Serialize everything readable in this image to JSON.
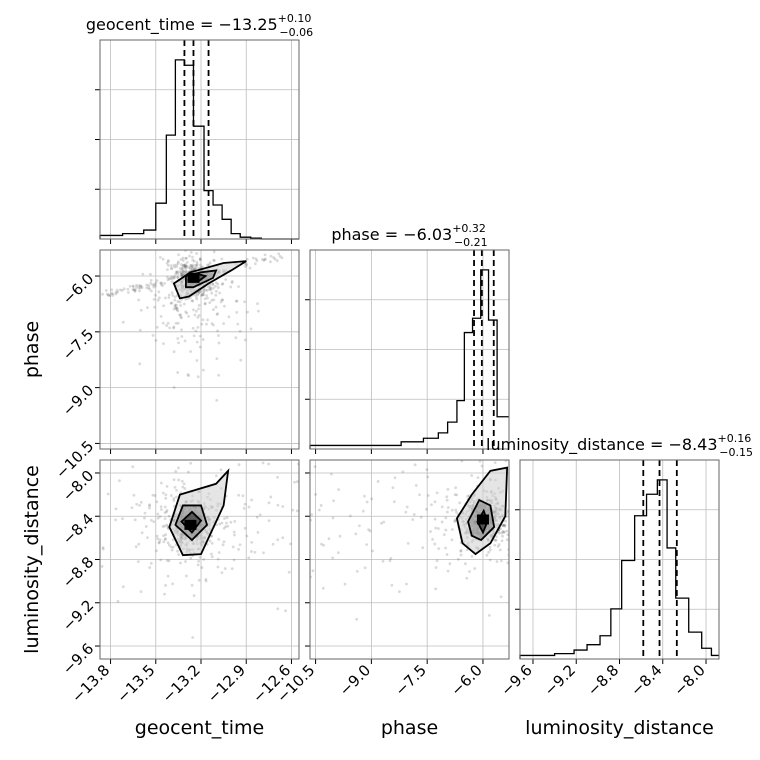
{
  "chart_data": {
    "type": "corner",
    "parameters": [
      {
        "key": "geocent_time",
        "axis_label": "geocent_time",
        "title": "geocent_time",
        "median": "−13.25",
        "plus": "+0.10",
        "minus": "−0.06",
        "range": [
          -13.87,
          -12.55
        ],
        "ticks": [
          -13.8,
          -13.5,
          -13.2,
          -12.9,
          -12.6
        ],
        "tick_labels": [
          "−13.8",
          "−13.5",
          "−13.2",
          "−12.9",
          "−12.6"
        ],
        "quantiles": [
          -13.31,
          -13.25,
          -13.15
        ],
        "hist_edges": [
          -13.87,
          -13.72,
          -13.58,
          -13.5,
          -13.43,
          -13.37,
          -13.31,
          -13.25,
          -13.18,
          -13.12,
          -13.06,
          -13.0,
          -12.94,
          -12.87,
          -12.8,
          -12.55
        ],
        "hist_values": [
          0.02,
          0.03,
          0.05,
          0.2,
          0.58,
          1.0,
          0.97,
          0.63,
          0.27,
          0.19,
          0.11,
          0.03,
          0.01,
          0.005,
          0.0
        ]
      },
      {
        "key": "phase",
        "axis_label": "phase",
        "title": "phase",
        "median": "−6.03",
        "plus": "+0.32",
        "minus": "−0.21",
        "range": [
          -10.65,
          -5.3
        ],
        "ticks": [
          -10.5,
          -9.0,
          -7.5,
          -6.0
        ],
        "tick_labels": [
          "−10.5",
          "−9.0",
          "−7.5",
          "−6.0"
        ],
        "quantiles": [
          -6.24,
          -6.03,
          -5.71
        ],
        "hist_edges": [
          -10.65,
          -8.2,
          -7.6,
          -7.2,
          -6.95,
          -6.7,
          -6.5,
          -6.28,
          -6.06,
          -5.85,
          -5.62,
          -5.3
        ],
        "hist_values": [
          0.02,
          0.04,
          0.06,
          0.09,
          0.15,
          0.27,
          0.65,
          0.73,
          1.0,
          0.72,
          0.18
        ]
      },
      {
        "key": "luminosity_distance",
        "axis_label": "luminosity_distance",
        "title": "luminosity_distance",
        "median": "−8.43",
        "plus": "+0.16",
        "minus": "−0.15",
        "range": [
          -9.72,
          -7.88
        ],
        "ticks": [
          -9.6,
          -9.2,
          -8.8,
          -8.4,
          -8.0
        ],
        "tick_labels": [
          "−9.6",
          "−9.2",
          "−8.8",
          "−8.4",
          "−8.0"
        ],
        "quantiles": [
          -8.58,
          -8.43,
          -8.27
        ],
        "hist_edges": [
          -9.72,
          -9.4,
          -9.22,
          -9.1,
          -8.98,
          -8.88,
          -8.78,
          -8.66,
          -8.55,
          -8.45,
          -8.36,
          -8.28,
          -8.16,
          -8.04,
          -7.95,
          -7.88
        ],
        "hist_values": [
          0.02,
          0.03,
          0.05,
          0.08,
          0.13,
          0.28,
          0.55,
          0.8,
          0.92,
          1.0,
          0.62,
          0.34,
          0.15,
          0.06,
          0.02
        ]
      }
    ],
    "pairs": [
      {
        "x": "geocent_time",
        "y": "phase",
        "mode": [
          -13.25,
          -6.05
        ],
        "contours": [
          [
            [
              -13.34,
              -6.6
            ],
            [
              -13.38,
              -6.2
            ],
            [
              -13.27,
              -5.9
            ],
            [
              -13.05,
              -5.65
            ],
            [
              -12.9,
              -5.6
            ],
            [
              -13.0,
              -5.85
            ],
            [
              -13.15,
              -6.2
            ],
            [
              -13.28,
              -6.55
            ]
          ],
          [
            [
              -13.3,
              -6.3
            ],
            [
              -13.3,
              -6.0
            ],
            [
              -13.2,
              -5.9
            ],
            [
              -13.1,
              -5.85
            ],
            [
              -13.12,
              -6.05
            ],
            [
              -13.25,
              -6.3
            ]
          ],
          [
            [
              -13.28,
              -6.1
            ],
            [
              -13.22,
              -5.95
            ],
            [
              -13.17,
              -6.0
            ],
            [
              -13.22,
              -6.15
            ]
          ]
        ],
        "streak": [
          [
            -13.87,
            -6.55
          ],
          [
            -12.6,
            -5.4
          ]
        ]
      },
      {
        "x": "geocent_time",
        "y": "luminosity_distance",
        "mode": [
          -13.27,
          -8.48
        ],
        "contours": [
          [
            [
              -13.41,
              -8.5
            ],
            [
              -13.34,
              -8.2
            ],
            [
              -13.1,
              -8.1
            ],
            [
              -13.02,
              -7.98
            ],
            [
              -13.05,
              -8.3
            ],
            [
              -13.2,
              -8.75
            ],
            [
              -13.32,
              -8.76
            ]
          ],
          [
            [
              -13.37,
              -8.48
            ],
            [
              -13.32,
              -8.3
            ],
            [
              -13.2,
              -8.3
            ],
            [
              -13.16,
              -8.48
            ],
            [
              -13.26,
              -8.62
            ]
          ],
          [
            [
              -13.33,
              -8.45
            ],
            [
              -13.26,
              -8.36
            ],
            [
              -13.2,
              -8.44
            ],
            [
              -13.26,
              -8.55
            ]
          ]
        ]
      },
      {
        "x": "phase",
        "y": "luminosity_distance",
        "mode": [
          -6.0,
          -8.43
        ],
        "contours": [
          [
            [
              -6.7,
              -8.42
            ],
            [
              -6.3,
              -8.2
            ],
            [
              -5.8,
              -7.98
            ],
            [
              -5.35,
              -7.95
            ],
            [
              -5.4,
              -8.4
            ],
            [
              -5.8,
              -8.65
            ],
            [
              -6.2,
              -8.75
            ],
            [
              -6.55,
              -8.65
            ]
          ],
          [
            [
              -6.4,
              -8.45
            ],
            [
              -6.1,
              -8.25
            ],
            [
              -5.8,
              -8.3
            ],
            [
              -5.7,
              -8.5
            ],
            [
              -6.05,
              -8.62
            ],
            [
              -6.3,
              -8.58
            ]
          ],
          [
            [
              -6.15,
              -8.45
            ],
            [
              -5.98,
              -8.35
            ],
            [
              -5.88,
              -8.45
            ],
            [
              -6.0,
              -8.55
            ]
          ]
        ]
      }
    ]
  }
}
